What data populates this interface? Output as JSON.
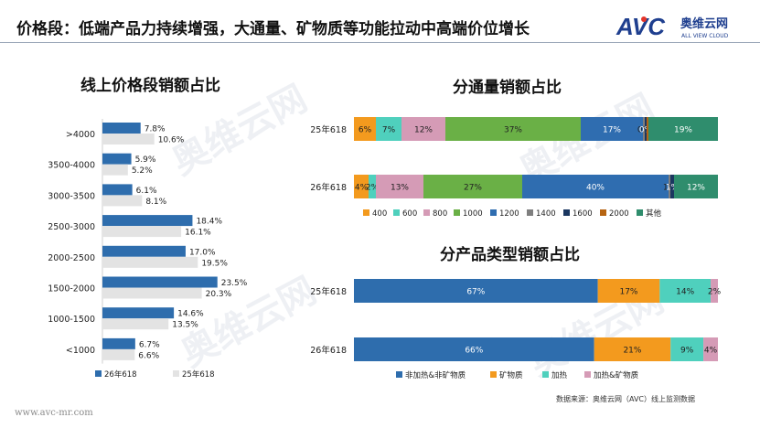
{
  "header": {
    "title": "价格段：低端产品力持续增强，大通量、矿物质等功能拉动中高端价位增长"
  },
  "logo": {
    "brand": "AVC",
    "cn": "奥维云网",
    "en": "ALL VIEW CLOUD",
    "colors": {
      "navy": "#1f3f8f",
      "red": "#e4352b"
    }
  },
  "watermark": {
    "text": "奥维云网",
    "sub": "ALL VIEW CLOUD"
  },
  "footer": {
    "url": "www.avc-mr.com",
    "source": "数据来源：奥维云网（AVC）线上监测数据"
  },
  "chart_data": [
    {
      "type": "bar",
      "orientation": "horizontal",
      "title": "线上价格段销额占比",
      "categories": [
        ">4000",
        "3500-4000",
        "3000-3500",
        "2500-3000",
        "2000-2500",
        "1500-2000",
        "1000-1500",
        "<1000"
      ],
      "series": [
        {
          "name": "26年618",
          "color": "#2e6dad",
          "values": [
            7.8,
            5.9,
            6.1,
            18.4,
            17.0,
            23.5,
            14.6,
            6.7
          ],
          "labels": [
            "7.8%",
            "5.9%",
            "6.1%",
            "18.4%",
            "17.0%",
            "23.5%",
            "14.6%",
            "6.7%"
          ]
        },
        {
          "name": "25年618",
          "color": "#e3e3e3",
          "values": [
            10.6,
            5.2,
            8.1,
            16.1,
            19.5,
            20.3,
            13.5,
            6.6
          ],
          "labels": [
            "10.6%",
            "5.2%",
            "8.1%",
            "16.1%",
            "19.5%",
            "20.3%",
            "13.5%",
            "6.6%"
          ]
        }
      ],
      "legend": "bottom-left"
    },
    {
      "type": "bar",
      "orientation": "horizontal",
      "stacked": true,
      "title": "分通量销额占比",
      "categories": [
        "25年618",
        "26年618"
      ],
      "series": [
        {
          "name": "400",
          "color": "#f39a1e",
          "values": [
            6,
            4
          ],
          "labels": [
            "6%",
            "4%"
          ]
        },
        {
          "name": "600",
          "color": "#4fd0bd",
          "values": [
            7,
            2
          ],
          "labels": [
            "7%",
            "2%"
          ]
        },
        {
          "name": "800",
          "color": "#d59bb6",
          "values": [
            12,
            13
          ],
          "labels": [
            "12%",
            "13%"
          ]
        },
        {
          "name": "1000",
          "color": "#6ab046",
          "values": [
            37,
            27
          ],
          "labels": [
            "37%",
            "27%"
          ]
        },
        {
          "name": "1200",
          "color": "#2f6db0",
          "values": [
            17,
            40
          ],
          "labels": [
            "17%",
            "40%"
          ]
        },
        {
          "name": "1400",
          "color": "#7f7f7f",
          "values": [
            0.5,
            0.5
          ],
          "labels": [
            "0%",
            "1%"
          ]
        },
        {
          "name": "1600",
          "color": "#1b3760",
          "values": [
            0.5,
            1
          ],
          "labels": [
            "0%",
            "1%"
          ]
        },
        {
          "name": "2000",
          "color": "#b66412",
          "values": [
            0.5,
            0
          ],
          "labels": [
            "",
            ""
          ]
        },
        {
          "name": "其他",
          "color": "#2f8d6d",
          "values": [
            19,
            12
          ],
          "labels": [
            "19%",
            "12%"
          ]
        }
      ],
      "legend": "bottom"
    },
    {
      "type": "bar",
      "orientation": "horizontal",
      "stacked": true,
      "title": "分产品类型销额占比",
      "categories": [
        "25年618",
        "26年618"
      ],
      "series": [
        {
          "name": "非加热&非矿物质",
          "color": "#2e6dad",
          "values": [
            67,
            66
          ],
          "labels": [
            "67%",
            "66%"
          ]
        },
        {
          "name": "矿物质",
          "color": "#f39a1e",
          "values": [
            17,
            21
          ],
          "labels": [
            "17%",
            "21%"
          ]
        },
        {
          "name": "加热",
          "color": "#4fd0bd",
          "values": [
            14,
            9
          ],
          "labels": [
            "14%",
            "9%"
          ]
        },
        {
          "name": "加热&矿物质",
          "color": "#d59bb6",
          "values": [
            2,
            4
          ],
          "labels": [
            "2%",
            "4%"
          ]
        }
      ],
      "legend": "bottom"
    }
  ]
}
